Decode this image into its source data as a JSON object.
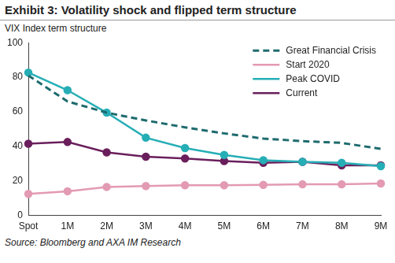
{
  "chart_data": {
    "type": "line",
    "title": "Exhibit 3: Volatility shock and flipped term structure",
    "ylabel": "VIX Index term structure",
    "source": "Source: Bloomberg and AXA IM Research",
    "categories": [
      "Spot",
      "1M",
      "2M",
      "3M",
      "4M",
      "5M",
      "6M",
      "7M",
      "8M",
      "9M"
    ],
    "series": [
      {
        "name": "Great Financial Crisis",
        "color": "#1e6b6e",
        "line_style": "dashed",
        "marker": "none",
        "values": [
          81,
          66,
          59.5,
          55,
          51,
          47.5,
          44.5,
          43,
          42,
          38.5
        ]
      },
      {
        "name": "Start 2020",
        "color": "#e39ab3",
        "line_style": "solid",
        "marker": "circle",
        "values": [
          12.5,
          14,
          16.5,
          17,
          17.5,
          17.5,
          17.7,
          18,
          18,
          18.5
        ]
      },
      {
        "name": "Peak COVID",
        "color": "#26aeb6",
        "line_style": "solid",
        "marker": "circle",
        "values": [
          82.7,
          72.5,
          59.5,
          45,
          39,
          35,
          32,
          31,
          30.5,
          28.5
        ]
      },
      {
        "name": "Current",
        "color": "#6a1f5c",
        "line_style": "solid",
        "marker": "circle",
        "values": [
          41.5,
          42.5,
          36.5,
          34,
          33,
          31.5,
          30.5,
          31,
          29,
          29
        ]
      }
    ],
    "ylim": [
      0,
      100
    ],
    "yticks": [
      0,
      20,
      40,
      60,
      80,
      100
    ],
    "grid": false,
    "legend": "upper right"
  }
}
